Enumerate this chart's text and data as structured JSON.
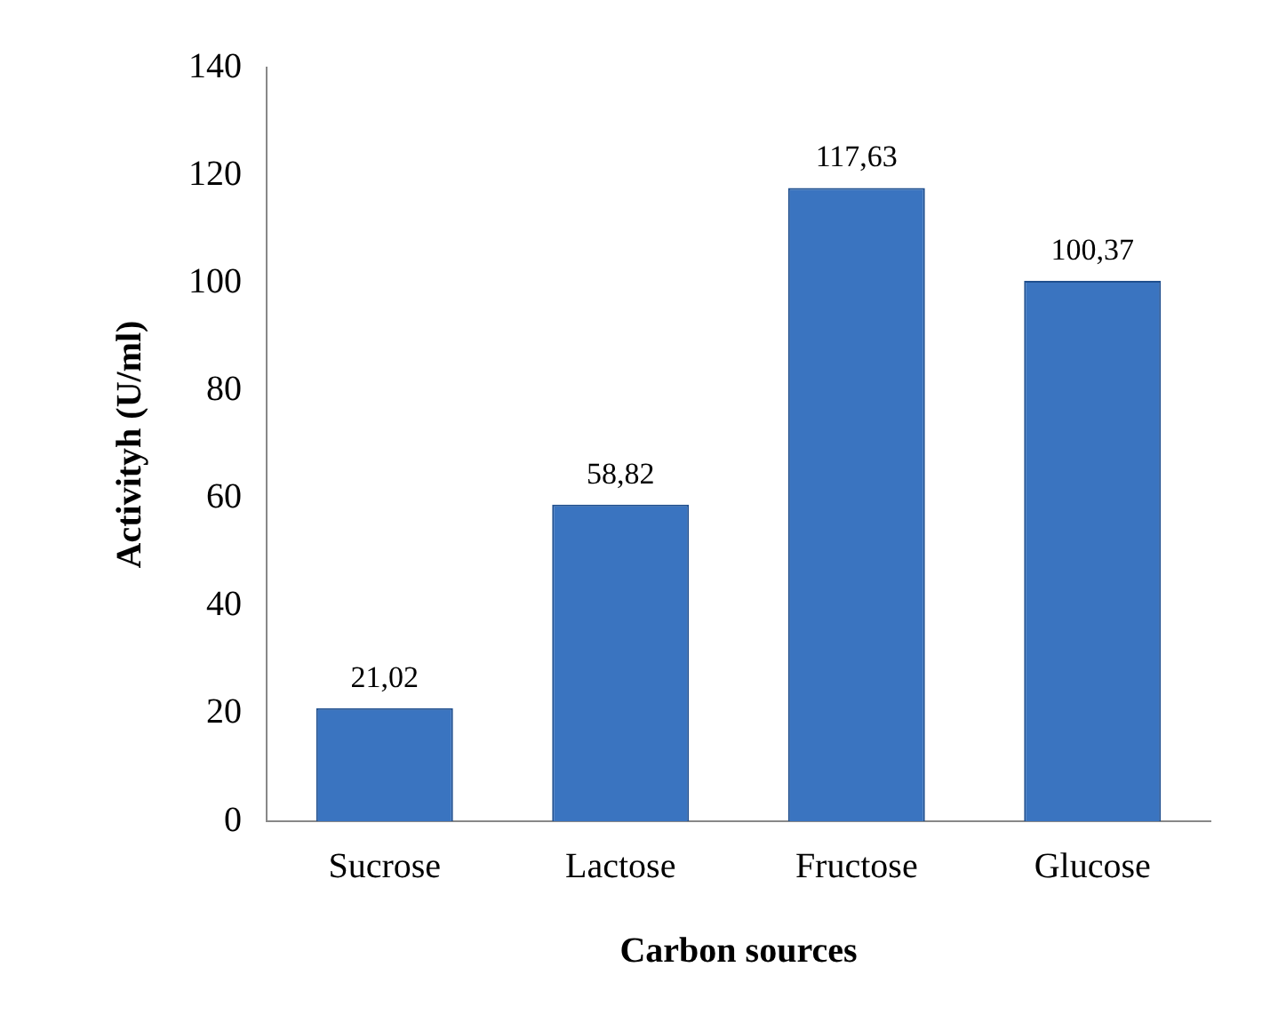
{
  "chart_data": {
    "type": "bar",
    "xlabel": "Carbon sources",
    "ylabel": "Activityh (U/ml)",
    "categories": [
      "Sucrose",
      "Lactose",
      "Fructose",
      "Glucose"
    ],
    "values": [
      21.02,
      58.82,
      117.63,
      100.37
    ],
    "value_labels": [
      "21,02",
      "58,82",
      "117,63",
      "100,37"
    ],
    "color": "#3a74c0",
    "ylim": [
      0,
      140
    ],
    "yticks": [
      0,
      20,
      40,
      60,
      80,
      100,
      120,
      140
    ],
    "grid": false,
    "legend": false
  }
}
